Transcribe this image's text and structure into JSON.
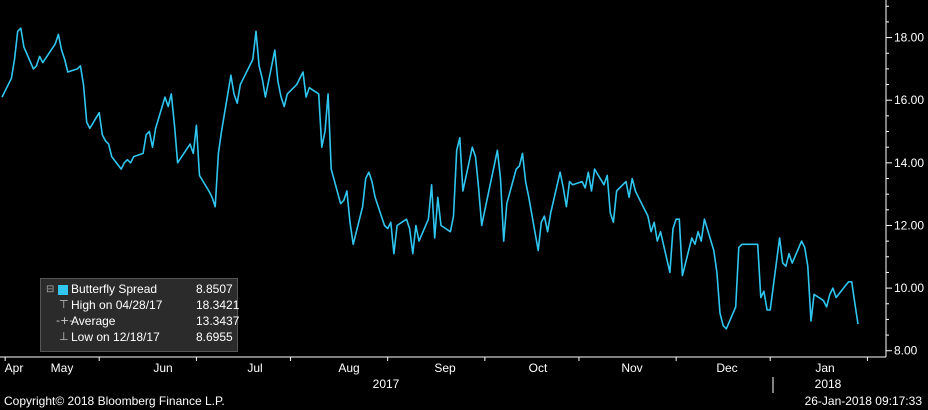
{
  "chart_data": {
    "type": "line",
    "series": [
      {
        "name": "Butterfly Spread",
        "color": "#30c6f0",
        "points": [
          [
            "2017-03-31",
            16.1
          ],
          [
            "2017-04-03",
            16.7
          ],
          [
            "2017-04-04",
            17.3
          ],
          [
            "2017-04-05",
            18.2
          ],
          [
            "2017-04-06",
            18.3
          ],
          [
            "2017-04-07",
            17.7
          ],
          [
            "2017-04-10",
            17.0
          ],
          [
            "2017-04-11",
            17.1
          ],
          [
            "2017-04-12",
            17.4
          ],
          [
            "2017-04-13",
            17.2
          ],
          [
            "2017-04-17",
            17.8
          ],
          [
            "2017-04-18",
            18.1
          ],
          [
            "2017-04-19",
            17.6
          ],
          [
            "2017-04-20",
            17.3
          ],
          [
            "2017-04-21",
            16.9
          ],
          [
            "2017-04-24",
            17.0
          ],
          [
            "2017-04-25",
            17.1
          ],
          [
            "2017-04-26",
            16.5
          ],
          [
            "2017-04-27",
            15.3
          ],
          [
            "2017-04-28",
            15.1
          ],
          [
            "2017-05-01",
            15.6
          ],
          [
            "2017-05-02",
            14.9
          ],
          [
            "2017-05-03",
            14.7
          ],
          [
            "2017-05-04",
            14.6
          ],
          [
            "2017-05-05",
            14.2
          ],
          [
            "2017-05-08",
            13.8
          ],
          [
            "2017-05-09",
            14.0
          ],
          [
            "2017-05-10",
            14.1
          ],
          [
            "2017-05-11",
            14.0
          ],
          [
            "2017-05-12",
            14.2
          ],
          [
            "2017-05-15",
            14.3
          ],
          [
            "2017-05-16",
            14.9
          ],
          [
            "2017-05-17",
            15.0
          ],
          [
            "2017-05-18",
            14.5
          ],
          [
            "2017-05-19",
            15.1
          ],
          [
            "2017-05-22",
            16.1
          ],
          [
            "2017-05-23",
            15.8
          ],
          [
            "2017-05-24",
            16.2
          ],
          [
            "2017-05-25",
            15.2
          ],
          [
            "2017-05-26",
            14.0
          ],
          [
            "2017-05-30",
            14.6
          ],
          [
            "2017-05-31",
            14.3
          ],
          [
            "2017-06-01",
            15.2
          ],
          [
            "2017-06-02",
            13.6
          ],
          [
            "2017-06-05",
            13.1
          ],
          [
            "2017-06-06",
            12.9
          ],
          [
            "2017-06-07",
            12.6
          ],
          [
            "2017-06-08",
            14.3
          ],
          [
            "2017-06-09",
            15.0
          ],
          [
            "2017-06-12",
            16.8
          ],
          [
            "2017-06-13",
            16.2
          ],
          [
            "2017-06-14",
            15.9
          ],
          [
            "2017-06-15",
            16.5
          ],
          [
            "2017-06-16",
            16.7
          ],
          [
            "2017-06-19",
            17.3
          ],
          [
            "2017-06-20",
            18.2
          ],
          [
            "2017-06-21",
            17.1
          ],
          [
            "2017-06-22",
            16.7
          ],
          [
            "2017-06-23",
            16.1
          ],
          [
            "2017-06-26",
            17.6
          ],
          [
            "2017-06-27",
            16.6
          ],
          [
            "2017-06-28",
            16.1
          ],
          [
            "2017-06-29",
            15.8
          ],
          [
            "2017-06-30",
            16.2
          ],
          [
            "2017-07-03",
            16.5
          ],
          [
            "2017-07-05",
            16.9
          ],
          [
            "2017-07-06",
            16.1
          ],
          [
            "2017-07-07",
            16.4
          ],
          [
            "2017-07-10",
            16.2
          ],
          [
            "2017-07-11",
            14.5
          ],
          [
            "2017-07-12",
            15.0
          ],
          [
            "2017-07-13",
            16.2
          ],
          [
            "2017-07-14",
            13.8
          ],
          [
            "2017-07-17",
            12.7
          ],
          [
            "2017-07-18",
            12.8
          ],
          [
            "2017-07-19",
            13.1
          ],
          [
            "2017-07-20",
            12.1
          ],
          [
            "2017-07-21",
            11.4
          ],
          [
            "2017-07-24",
            12.6
          ],
          [
            "2017-07-25",
            13.5
          ],
          [
            "2017-07-26",
            13.7
          ],
          [
            "2017-07-27",
            13.4
          ],
          [
            "2017-07-28",
            12.9
          ],
          [
            "2017-07-31",
            12.0
          ],
          [
            "2017-08-01",
            11.9
          ],
          [
            "2017-08-02",
            12.1
          ],
          [
            "2017-08-03",
            11.1
          ],
          [
            "2017-08-04",
            12.0
          ],
          [
            "2017-08-07",
            12.2
          ],
          [
            "2017-08-08",
            11.9
          ],
          [
            "2017-08-09",
            11.1
          ],
          [
            "2017-08-10",
            12.0
          ],
          [
            "2017-08-11",
            11.5
          ],
          [
            "2017-08-14",
            12.2
          ],
          [
            "2017-08-15",
            13.3
          ],
          [
            "2017-08-16",
            11.6
          ],
          [
            "2017-08-17",
            12.9
          ],
          [
            "2017-08-18",
            12.0
          ],
          [
            "2017-08-21",
            11.8
          ],
          [
            "2017-08-22",
            12.3
          ],
          [
            "2017-08-23",
            14.4
          ],
          [
            "2017-08-24",
            14.8
          ],
          [
            "2017-08-25",
            13.1
          ],
          [
            "2017-08-28",
            14.5
          ],
          [
            "2017-08-29",
            14.2
          ],
          [
            "2017-08-30",
            13.2
          ],
          [
            "2017-08-31",
            12.0
          ],
          [
            "2017-09-01",
            12.5
          ],
          [
            "2017-09-05",
            14.4
          ],
          [
            "2017-09-06",
            13.5
          ],
          [
            "2017-09-07",
            11.5
          ],
          [
            "2017-09-08",
            12.7
          ],
          [
            "2017-09-11",
            13.8
          ],
          [
            "2017-09-12",
            13.9
          ],
          [
            "2017-09-13",
            14.3
          ],
          [
            "2017-09-14",
            13.4
          ],
          [
            "2017-09-15",
            12.9
          ],
          [
            "2017-09-18",
            11.2
          ],
          [
            "2017-09-19",
            12.1
          ],
          [
            "2017-09-20",
            12.3
          ],
          [
            "2017-09-21",
            11.8
          ],
          [
            "2017-09-22",
            12.4
          ],
          [
            "2017-09-25",
            13.7
          ],
          [
            "2017-09-26",
            13.2
          ],
          [
            "2017-09-27",
            12.6
          ],
          [
            "2017-09-28",
            13.4
          ],
          [
            "2017-09-29",
            13.3
          ],
          [
            "2017-10-02",
            13.4
          ],
          [
            "2017-10-03",
            13.2
          ],
          [
            "2017-10-04",
            13.7
          ],
          [
            "2017-10-05",
            13.1
          ],
          [
            "2017-10-06",
            13.8
          ],
          [
            "2017-10-09",
            13.3
          ],
          [
            "2017-10-10",
            13.6
          ],
          [
            "2017-10-11",
            12.4
          ],
          [
            "2017-10-12",
            12.1
          ],
          [
            "2017-10-13",
            13.1
          ],
          [
            "2017-10-16",
            13.4
          ],
          [
            "2017-10-17",
            12.9
          ],
          [
            "2017-10-18",
            13.5
          ],
          [
            "2017-10-19",
            13.1
          ],
          [
            "2017-10-20",
            12.9
          ],
          [
            "2017-10-23",
            12.3
          ],
          [
            "2017-10-24",
            11.8
          ],
          [
            "2017-10-25",
            12.1
          ],
          [
            "2017-10-26",
            11.5
          ],
          [
            "2017-10-27",
            11.8
          ],
          [
            "2017-10-30",
            10.5
          ],
          [
            "2017-10-31",
            11.9
          ],
          [
            "2017-11-01",
            12.2
          ],
          [
            "2017-11-02",
            12.2
          ],
          [
            "2017-11-03",
            10.4
          ],
          [
            "2017-11-06",
            11.6
          ],
          [
            "2017-11-07",
            11.4
          ],
          [
            "2017-11-08",
            11.8
          ],
          [
            "2017-11-09",
            11.5
          ],
          [
            "2017-11-10",
            12.2
          ],
          [
            "2017-11-13",
            11.2
          ],
          [
            "2017-11-14",
            10.5
          ],
          [
            "2017-11-15",
            9.2
          ],
          [
            "2017-11-16",
            8.8
          ],
          [
            "2017-11-17",
            8.7
          ],
          [
            "2017-11-20",
            9.4
          ],
          [
            "2017-11-21",
            11.3
          ],
          [
            "2017-11-22",
            11.4
          ],
          [
            "2017-11-24",
            11.4
          ],
          [
            "2017-11-27",
            11.4
          ],
          [
            "2017-11-28",
            9.7
          ],
          [
            "2017-11-29",
            9.9
          ],
          [
            "2017-11-30",
            9.3
          ],
          [
            "2017-12-01",
            9.3
          ],
          [
            "2017-12-04",
            11.6
          ],
          [
            "2017-12-05",
            10.8
          ],
          [
            "2017-12-06",
            10.7
          ],
          [
            "2017-12-07",
            11.1
          ],
          [
            "2017-12-08",
            10.8
          ],
          [
            "2017-12-11",
            11.5
          ],
          [
            "2017-12-12",
            11.3
          ],
          [
            "2017-12-13",
            10.7
          ],
          [
            "2017-12-14",
            8.95
          ],
          [
            "2017-12-15",
            9.8
          ],
          [
            "2017-12-18",
            9.6
          ],
          [
            "2017-12-19",
            9.4
          ],
          [
            "2017-12-20",
            9.8
          ],
          [
            "2017-12-21",
            10.0
          ],
          [
            "2017-12-22",
            9.7
          ],
          [
            "2017-12-26",
            10.2
          ],
          [
            "2017-12-27",
            10.2
          ],
          [
            "2017-12-28",
            9.5
          ],
          [
            "2017-12-29",
            8.85
          ]
        ]
      }
    ],
    "x_ticks": [
      "Apr",
      "May",
      "Jun",
      "Jul",
      "Aug",
      "Sep",
      "Oct",
      "Nov",
      "Dec",
      "Jan"
    ],
    "x_years": [
      "2017",
      "2018"
    ],
    "y_ticks": [
      "8.00",
      "10.00",
      "12.00",
      "14.00",
      "16.00",
      "18.00"
    ],
    "ylim": [
      7.8,
      19.2
    ],
    "grid": false,
    "legend": {
      "placement": "bottom-left",
      "rows": [
        {
          "label": "Butterfly Spread",
          "value": "8.8507"
        },
        {
          "label": "High on 04/28/17",
          "value": "18.3421"
        },
        {
          "label": "Average",
          "value": "13.3437"
        },
        {
          "label": "Low on 12/18/17",
          "value": "8.6955"
        }
      ]
    }
  },
  "footer": {
    "copyright": "Copyright© 2018 Bloomberg Finance L.P.",
    "timestamp": "26-Jan-2018 09:17:33"
  },
  "colors": {
    "background": "#000000",
    "line": "#30c6f0",
    "axis": "#ffffff",
    "legend_bg": "#2b2b2b"
  }
}
